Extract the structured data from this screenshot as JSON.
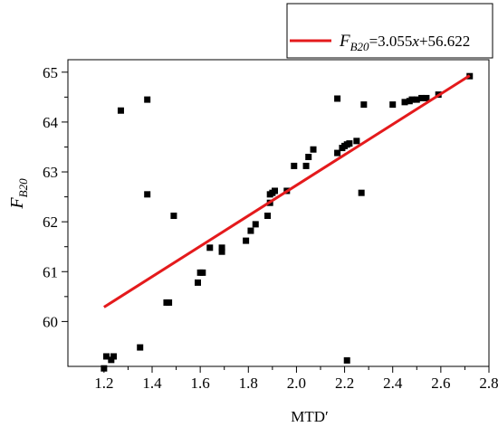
{
  "chart_data": {
    "type": "scatter",
    "xlabel": "MTD′",
    "ylabel": {
      "main": "F",
      "sub": "B20"
    },
    "xlim": [
      1.05,
      2.8
    ],
    "ylim": [
      59.1,
      65.25
    ],
    "x_ticks": [
      "1.2",
      "1.4",
      "1.6",
      "1.8",
      "2.0",
      "2.2",
      "2.4",
      "2.6",
      "2.8"
    ],
    "y_ticks": [
      "60",
      "61",
      "62",
      "63",
      "64",
      "65"
    ],
    "x_tick_values": [
      1.2,
      1.4,
      1.6,
      1.8,
      2.0,
      2.2,
      2.4,
      2.6,
      2.8
    ],
    "y_tick_values": [
      60,
      61,
      62,
      63,
      64,
      65
    ],
    "grid": false,
    "legend_position": "top-right",
    "marker_color": "#000000",
    "line_color": "#e41a1c",
    "series": [
      {
        "kind": "points",
        "points": [
          [
            1.2,
            59.06
          ],
          [
            1.21,
            59.3
          ],
          [
            1.23,
            59.23
          ],
          [
            1.24,
            59.3
          ],
          [
            1.27,
            64.23
          ],
          [
            1.35,
            59.48
          ],
          [
            1.38,
            64.45
          ],
          [
            1.38,
            62.55
          ],
          [
            1.46,
            60.38
          ],
          [
            1.47,
            60.38
          ],
          [
            1.49,
            62.12
          ],
          [
            1.59,
            60.78
          ],
          [
            1.6,
            60.98
          ],
          [
            1.61,
            60.98
          ],
          [
            1.64,
            61.48
          ],
          [
            1.69,
            61.48
          ],
          [
            1.69,
            61.4
          ],
          [
            1.79,
            61.62
          ],
          [
            1.81,
            61.82
          ],
          [
            1.83,
            61.95
          ],
          [
            1.88,
            62.12
          ],
          [
            1.89,
            62.38
          ],
          [
            1.89,
            62.55
          ],
          [
            1.9,
            62.58
          ],
          [
            1.91,
            62.62
          ],
          [
            1.96,
            62.62
          ],
          [
            1.99,
            63.12
          ],
          [
            2.04,
            63.12
          ],
          [
            2.05,
            63.3
          ],
          [
            2.07,
            63.45
          ],
          [
            2.17,
            63.38
          ],
          [
            2.17,
            64.47
          ],
          [
            2.19,
            63.48
          ],
          [
            2.2,
            63.52
          ],
          [
            2.21,
            63.55
          ],
          [
            2.21,
            59.22
          ],
          [
            2.22,
            63.57
          ],
          [
            2.25,
            63.62
          ],
          [
            2.27,
            62.58
          ],
          [
            2.28,
            64.35
          ],
          [
            2.4,
            64.35
          ],
          [
            2.45,
            64.4
          ],
          [
            2.47,
            64.42
          ],
          [
            2.48,
            64.45
          ],
          [
            2.5,
            64.45
          ],
          [
            2.52,
            64.48
          ],
          [
            2.54,
            64.48
          ],
          [
            2.59,
            64.55
          ],
          [
            2.72,
            64.92
          ]
        ]
      },
      {
        "kind": "fit",
        "name": "F_B20=3.055x+56.622",
        "slope": 3.055,
        "intercept": 56.622,
        "x_range": [
          1.2,
          2.72
        ]
      }
    ],
    "legend": {
      "sym": "F",
      "sub": "B20",
      "rest": "=3.055",
      "var": "x",
      "tail": "+56.622"
    }
  }
}
